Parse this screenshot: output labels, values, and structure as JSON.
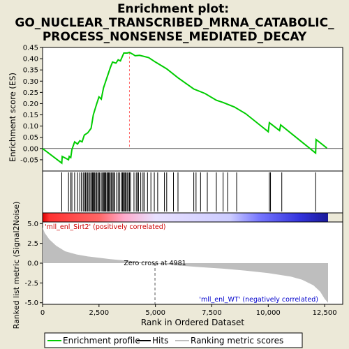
{
  "title_line1": "Enrichment plot:",
  "title_line2": "GO_NUCLEAR_TRANSCRIBED_MRNA_CATABOLIC_",
  "title_line3": "PROCESS_NONSENSE_MEDIATED_DECAY",
  "chart_data": {
    "type": "line",
    "es_panel": {
      "ylabel": "Enrichment score (ES)",
      "ylim": [
        -0.1,
        0.45
      ],
      "yticks": [
        -0.05,
        0.0,
        0.05,
        0.1,
        0.15,
        0.2,
        0.25,
        0.3,
        0.35,
        0.4,
        0.45
      ],
      "ytick_labels": [
        "-0.05",
        "0.00",
        "0.05",
        "0.10",
        "0.15",
        "0.20",
        "0.25",
        "0.30",
        "0.35",
        "0.40",
        "0.45"
      ],
      "line_color": "#00cc00",
      "curve": [
        [
          0,
          0
        ],
        [
          850,
          -0.065
        ],
        [
          870,
          -0.035
        ],
        [
          1150,
          -0.05
        ],
        [
          1180,
          -0.035
        ],
        [
          1250,
          -0.04
        ],
        [
          1300,
          -0.005
        ],
        [
          1420,
          0.03
        ],
        [
          1550,
          0.02
        ],
        [
          1650,
          0.035
        ],
        [
          1750,
          0.03
        ],
        [
          1850,
          0.06
        ],
        [
          2000,
          0.07
        ],
        [
          2150,
          0.09
        ],
        [
          2250,
          0.15
        ],
        [
          2400,
          0.2
        ],
        [
          2500,
          0.23
        ],
        [
          2600,
          0.22
        ],
        [
          2700,
          0.27
        ],
        [
          2800,
          0.3
        ],
        [
          2900,
          0.33
        ],
        [
          3000,
          0.36
        ],
        [
          3100,
          0.385
        ],
        [
          3250,
          0.38
        ],
        [
          3350,
          0.395
        ],
        [
          3450,
          0.39
        ],
        [
          3600,
          0.425
        ],
        [
          3750,
          0.425
        ],
        [
          3850,
          0.428
        ],
        [
          4000,
          0.42
        ],
        [
          4100,
          0.413
        ],
        [
          4300,
          0.415
        ],
        [
          4500,
          0.41
        ],
        [
          4700,
          0.405
        ],
        [
          5000,
          0.385
        ],
        [
          5500,
          0.355
        ],
        [
          6000,
          0.315
        ],
        [
          6700,
          0.265
        ],
        [
          7200,
          0.245
        ],
        [
          7700,
          0.215
        ],
        [
          8000,
          0.205
        ],
        [
          8500,
          0.185
        ],
        [
          9000,
          0.155
        ],
        [
          10000,
          0.075
        ],
        [
          10050,
          0.115
        ],
        [
          10500,
          0.08
        ],
        [
          10550,
          0.105
        ],
        [
          12100,
          -0.02
        ],
        [
          12120,
          0.04
        ],
        [
          12600,
          0.002
        ]
      ],
      "peak_marker_color": "#ff0000"
    },
    "hits_panel": {
      "hit_positions": [
        850,
        1150,
        1250,
        1300,
        1420,
        1550,
        1650,
        1720,
        1800,
        1850,
        1900,
        1950,
        2000,
        2050,
        2100,
        2150,
        2200,
        2230,
        2260,
        2300,
        2350,
        2400,
        2450,
        2500,
        2530,
        2600,
        2650,
        2700,
        2730,
        2760,
        2800,
        2850,
        2880,
        2920,
        2950,
        3000,
        3050,
        3100,
        3150,
        3200,
        3280,
        3350,
        3420,
        3500,
        3540,
        3580,
        3620,
        3660,
        3700,
        3750,
        3800,
        3850,
        3900,
        4050,
        4150,
        4200,
        4250,
        4350,
        4450,
        4500,
        4650,
        4800,
        4950,
        5100,
        5400,
        5500,
        5800,
        6000,
        6700,
        6800,
        7000,
        7300,
        7700,
        8000,
        8200,
        8600,
        10050,
        10100,
        10600,
        12100
      ]
    },
    "ranking_panel": {
      "ylabel": "Ranked list metric (Signal2Noise)",
      "ylim": [
        -5.2,
        5.2
      ],
      "yticks": [
        -5.0,
        -2.5,
        0.0,
        2.5,
        5.0
      ],
      "ytick_labels": [
        "-5.0",
        "-2.5",
        "0.0",
        "2.5",
        "5.0"
      ],
      "curve": [
        [
          0,
          4.5
        ],
        [
          100,
          3.8
        ],
        [
          300,
          3.0
        ],
        [
          600,
          2.2
        ],
        [
          1000,
          1.5
        ],
        [
          1500,
          1.1
        ],
        [
          2000,
          0.85
        ],
        [
          3000,
          0.5
        ],
        [
          4000,
          0.25
        ],
        [
          4981,
          0.0
        ],
        [
          6000,
          -0.3
        ],
        [
          7000,
          -0.5
        ],
        [
          8000,
          -0.7
        ],
        [
          9000,
          -0.95
        ],
        [
          10000,
          -1.25
        ],
        [
          11000,
          -1.7
        ],
        [
          11500,
          -2.1
        ],
        [
          12000,
          -2.8
        ],
        [
          12300,
          -3.6
        ],
        [
          12500,
          -4.5
        ],
        [
          12650,
          -5.0
        ]
      ],
      "fill_color": "#bebebe",
      "zero_cross_rank": 4981,
      "zero_cross_label": "Zero cross at 4981",
      "positive_label": "'mll_enl_Sirt2' (positively correlated)",
      "positive_label_color": "#cc0000",
      "negative_label": "'mll_enl_WT' (negatively correlated)",
      "negative_label_color": "#0000cc"
    },
    "x_axis": {
      "xlabel": "Rank in Ordered Dataset",
      "xlim": [
        0,
        13300
      ],
      "xticks": [
        0,
        2500,
        5000,
        7500,
        10000,
        12500
      ],
      "xtick_labels": [
        "0",
        "2,500",
        "5,000",
        "7,500",
        "10,000",
        "12,500"
      ],
      "n_genes": 12650
    },
    "colorbar_color_stops": [
      {
        "rank": 0,
        "color": "#dd0000"
      },
      {
        "rank": 300,
        "color": "#ff3333"
      },
      {
        "rank": 2500,
        "color": "#ff6666"
      },
      {
        "rank": 3600,
        "color": "#ffaacc"
      },
      {
        "rank": 5000,
        "color": "#e8e0ff"
      },
      {
        "rank": 8300,
        "color": "#ccccff"
      },
      {
        "rank": 9600,
        "color": "#7777ff"
      },
      {
        "rank": 11400,
        "color": "#3333dd"
      },
      {
        "rank": 12650,
        "color": "#1a1a99"
      }
    ],
    "legend": {
      "items": [
        {
          "label": "Enrichment profile",
          "color": "#00cc00",
          "kind": "line"
        },
        {
          "label": "Hits",
          "color": "#000000",
          "kind": "line"
        },
        {
          "label": "Ranking metric scores",
          "color": "#bebebe",
          "kind": "line"
        }
      ]
    }
  }
}
